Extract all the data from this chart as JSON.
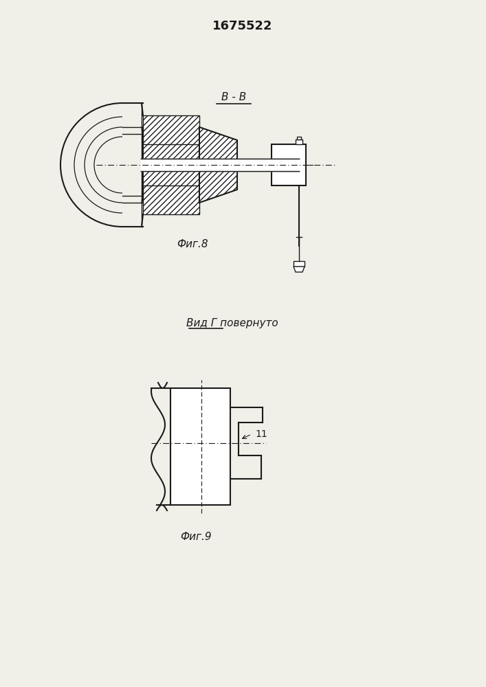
{
  "title": "1675522",
  "bg_color": "#f0efe8",
  "line_color": "#1a1a1a",
  "fig8_label": "Фиг.8",
  "fig9_label": "Фиг.9",
  "section_label": "В - В",
  "view_label": "Вид Г повернуто",
  "part_label": "11"
}
